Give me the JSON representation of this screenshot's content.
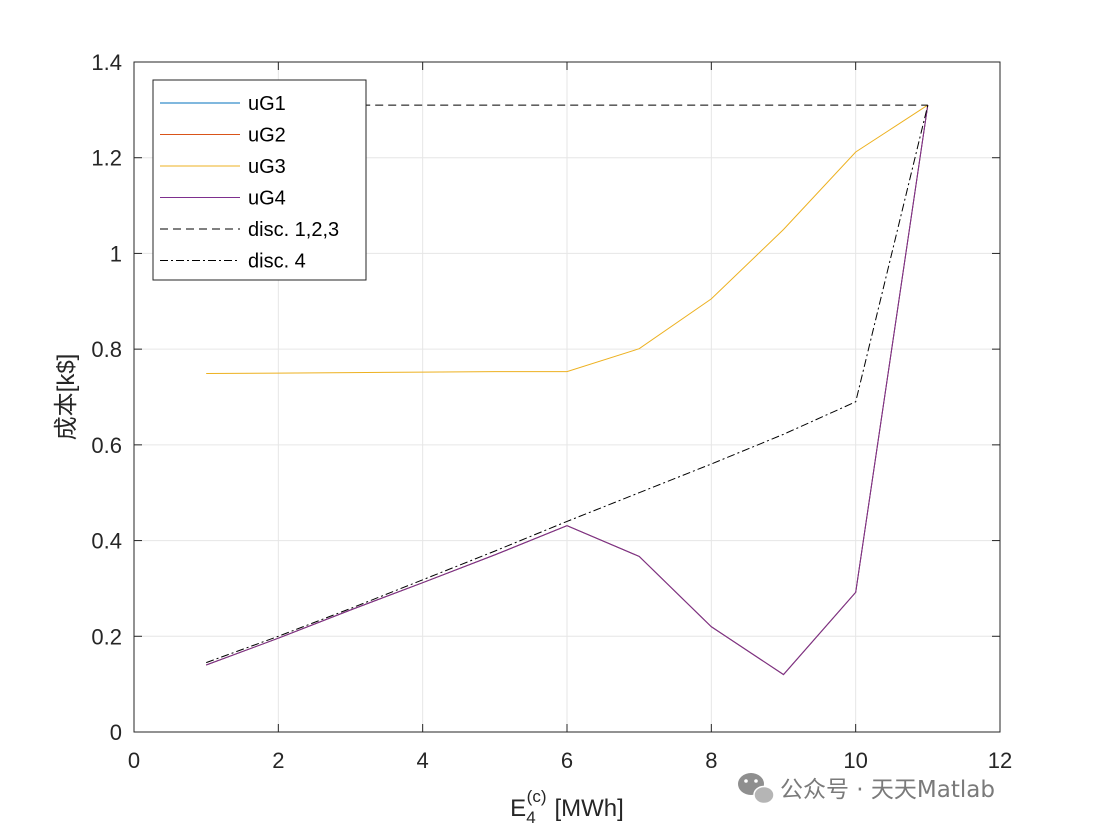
{
  "chart_data": {
    "type": "line",
    "xlabel": "E",
    "xlabel_sub": "4",
    "xlabel_sup": "(c)",
    "xlabel_unit": "[MWh]",
    "ylabel": "成本[k$]",
    "xlim": [
      0,
      12
    ],
    "ylim": [
      0,
      1.4
    ],
    "xticks": [
      0,
      2,
      4,
      6,
      8,
      10,
      12
    ],
    "yticks": [
      0,
      0.2,
      0.4,
      0.6,
      0.8,
      1,
      1.2,
      1.4
    ],
    "xtick_labels": [
      "0",
      "2",
      "4",
      "6",
      "8",
      "10",
      "12"
    ],
    "ytick_labels": [
      "0",
      "0.2",
      "0.4",
      "0.6",
      "0.8",
      "1",
      "1.2",
      "1.4"
    ],
    "grid": true,
    "legend_position": "top-left",
    "series": [
      {
        "name": "uG1",
        "color": "#0072BD",
        "dash": "solid",
        "x": [
          1,
          2,
          3,
          4,
          5,
          6,
          7,
          8,
          9,
          10,
          11
        ],
        "y": [
          0.14,
          0.196,
          0.255,
          0.312,
          0.37,
          0.431,
          0.367,
          0.22,
          0.12,
          0.292,
          1.31
        ]
      },
      {
        "name": "uG2",
        "color": "#D95319",
        "dash": "solid",
        "x": [
          1,
          2,
          3,
          4,
          5,
          6,
          7,
          8,
          9,
          10,
          11
        ],
        "y": [
          0.14,
          0.196,
          0.255,
          0.312,
          0.37,
          0.431,
          0.367,
          0.22,
          0.12,
          0.292,
          1.31
        ]
      },
      {
        "name": "uG3",
        "color": "#EDB120",
        "dash": "solid",
        "x": [
          1,
          2,
          3,
          4,
          5,
          6,
          7,
          8,
          9,
          10,
          11
        ],
        "y": [
          0.749,
          0.75,
          0.751,
          0.752,
          0.753,
          0.753,
          0.801,
          0.905,
          1.05,
          1.212,
          1.31
        ]
      },
      {
        "name": "uG4",
        "color": "#7E2F8E",
        "dash": "solid",
        "x": [
          1,
          2,
          3,
          4,
          5,
          6,
          7,
          8,
          9,
          10,
          11
        ],
        "y": [
          0.14,
          0.196,
          0.255,
          0.312,
          0.37,
          0.431,
          0.367,
          0.22,
          0.12,
          0.292,
          1.31
        ]
      },
      {
        "name": "disc. 1,2,3",
        "color": "#000000",
        "dash": "dashed",
        "x": [
          1,
          11
        ],
        "y": [
          1.31,
          1.31
        ]
      },
      {
        "name": "disc. 4",
        "color": "#000000",
        "dash": "dashdot",
        "x": [
          1,
          2,
          3,
          4,
          5,
          6,
          7,
          8,
          9,
          10,
          11
        ],
        "y": [
          0.145,
          0.2,
          0.258,
          0.318,
          0.378,
          0.44,
          0.5,
          0.56,
          0.622,
          0.69,
          1.31
        ]
      }
    ]
  },
  "watermark": {
    "text": "公众号 · 天天Matlab",
    "icon": "wechat-icon"
  }
}
